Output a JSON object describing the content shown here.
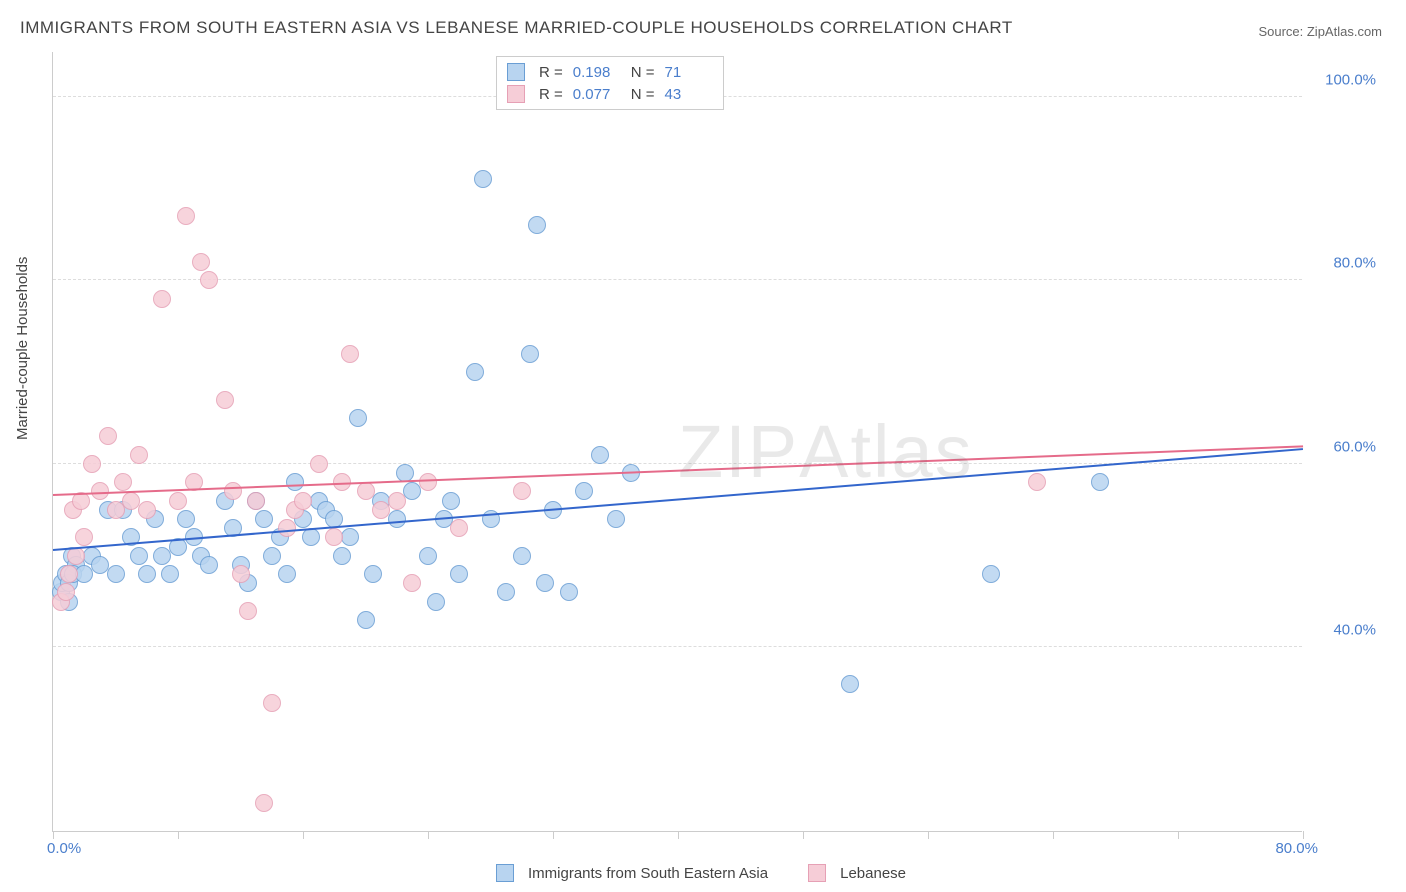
{
  "title": "IMMIGRANTS FROM SOUTH EASTERN ASIA VS LEBANESE MARRIED-COUPLE HOUSEHOLDS CORRELATION CHART",
  "source": "Source: ZipAtlas.com",
  "watermark": "ZIPAtlas",
  "y_axis_label": "Married-couple Households",
  "chart": {
    "type": "scatter",
    "xlim": [
      0,
      80
    ],
    "ylim": [
      20,
      105
    ],
    "y_ticks": [
      40,
      60,
      80,
      100
    ],
    "y_tick_labels": [
      "40.0%",
      "60.0%",
      "80.0%",
      "100.0%"
    ],
    "x_minor_ticks": [
      0,
      8,
      16,
      24,
      32,
      40,
      48,
      56,
      64,
      72,
      80
    ],
    "x_tick_label_min": "0.0%",
    "x_tick_label_max": "80.0%",
    "background_color": "#ffffff",
    "grid_color": "#dddddd",
    "axis_color": "#cccccc",
    "label_color": "#4a7ecc",
    "title_color": "#444444",
    "point_radius": 9,
    "series": [
      {
        "name": "Immigrants from South Eastern Asia",
        "fill": "#b8d4f0",
        "stroke": "#6a9ed4",
        "trend_color": "#3366cc",
        "r": "0.198",
        "n": "71",
        "trend": {
          "x1": 0,
          "y1": 50.5,
          "x2": 80,
          "y2": 61.5
        },
        "points": [
          [
            0.5,
            46
          ],
          [
            0.6,
            47
          ],
          [
            0.8,
            48
          ],
          [
            1,
            45
          ],
          [
            1.2,
            50
          ],
          [
            1.5,
            49
          ],
          [
            1,
            47
          ],
          [
            1.3,
            48
          ],
          [
            2,
            48
          ],
          [
            2.5,
            50
          ],
          [
            3,
            49
          ],
          [
            3.5,
            55
          ],
          [
            4,
            48
          ],
          [
            4.5,
            55
          ],
          [
            5,
            52
          ],
          [
            5.5,
            50
          ],
          [
            6,
            48
          ],
          [
            6.5,
            54
          ],
          [
            7,
            50
          ],
          [
            7.5,
            48
          ],
          [
            8,
            51
          ],
          [
            8.5,
            54
          ],
          [
            9,
            52
          ],
          [
            9.5,
            50
          ],
          [
            10,
            49
          ],
          [
            11,
            56
          ],
          [
            11.5,
            53
          ],
          [
            12,
            49
          ],
          [
            12.5,
            47
          ],
          [
            13,
            56
          ],
          [
            13.5,
            54
          ],
          [
            14,
            50
          ],
          [
            14.5,
            52
          ],
          [
            15,
            48
          ],
          [
            15.5,
            58
          ],
          [
            16,
            54
          ],
          [
            16.5,
            52
          ],
          [
            17,
            56
          ],
          [
            17.5,
            55
          ],
          [
            18,
            54
          ],
          [
            18.5,
            50
          ],
          [
            19,
            52
          ],
          [
            19.5,
            65
          ],
          [
            20,
            43
          ],
          [
            20.5,
            48
          ],
          [
            21,
            56
          ],
          [
            22,
            54
          ],
          [
            22.5,
            59
          ],
          [
            23,
            57
          ],
          [
            24,
            50
          ],
          [
            24.5,
            45
          ],
          [
            25,
            54
          ],
          [
            25.5,
            56
          ],
          [
            26,
            48
          ],
          [
            27,
            70
          ],
          [
            27.5,
            91
          ],
          [
            28,
            54
          ],
          [
            29,
            46
          ],
          [
            30,
            50
          ],
          [
            30.5,
            72
          ],
          [
            31,
            86
          ],
          [
            31.5,
            47
          ],
          [
            32,
            55
          ],
          [
            33,
            46
          ],
          [
            34,
            57
          ],
          [
            35,
            61
          ],
          [
            36,
            54
          ],
          [
            37,
            59
          ],
          [
            51,
            36
          ],
          [
            60,
            48
          ],
          [
            67,
            58
          ]
        ]
      },
      {
        "name": "Lebanese",
        "fill": "#f6cdd7",
        "stroke": "#e6a0b5",
        "trend_color": "#e56b8a",
        "r": "0.077",
        "n": "43",
        "trend": {
          "x1": 0,
          "y1": 56.5,
          "x2": 80,
          "y2": 61.8
        },
        "points": [
          [
            0.5,
            45
          ],
          [
            0.8,
            46
          ],
          [
            1,
            48
          ],
          [
            1.3,
            55
          ],
          [
            1.5,
            50
          ],
          [
            1.8,
            56
          ],
          [
            2,
            52
          ],
          [
            2.5,
            60
          ],
          [
            3,
            57
          ],
          [
            3.5,
            63
          ],
          [
            4,
            55
          ],
          [
            4.5,
            58
          ],
          [
            5,
            56
          ],
          [
            5.5,
            61
          ],
          [
            6,
            55
          ],
          [
            7,
            78
          ],
          [
            8,
            56
          ],
          [
            8.5,
            87
          ],
          [
            9,
            58
          ],
          [
            9.5,
            82
          ],
          [
            10,
            80
          ],
          [
            11,
            67
          ],
          [
            11.5,
            57
          ],
          [
            12,
            48
          ],
          [
            12.5,
            44
          ],
          [
            13,
            56
          ],
          [
            13.5,
            23
          ],
          [
            14,
            34
          ],
          [
            15,
            53
          ],
          [
            15.5,
            55
          ],
          [
            16,
            56
          ],
          [
            17,
            60
          ],
          [
            18,
            52
          ],
          [
            18.5,
            58
          ],
          [
            19,
            72
          ],
          [
            20,
            57
          ],
          [
            21,
            55
          ],
          [
            22,
            56
          ],
          [
            23,
            47
          ],
          [
            24,
            58
          ],
          [
            26,
            53
          ],
          [
            30,
            57
          ],
          [
            63,
            58
          ]
        ]
      }
    ]
  },
  "legend_top": {
    "r_label": "R =",
    "n_label": "N ="
  },
  "legend_bottom_labels": [
    "Immigrants from South Eastern Asia",
    "Lebanese"
  ]
}
